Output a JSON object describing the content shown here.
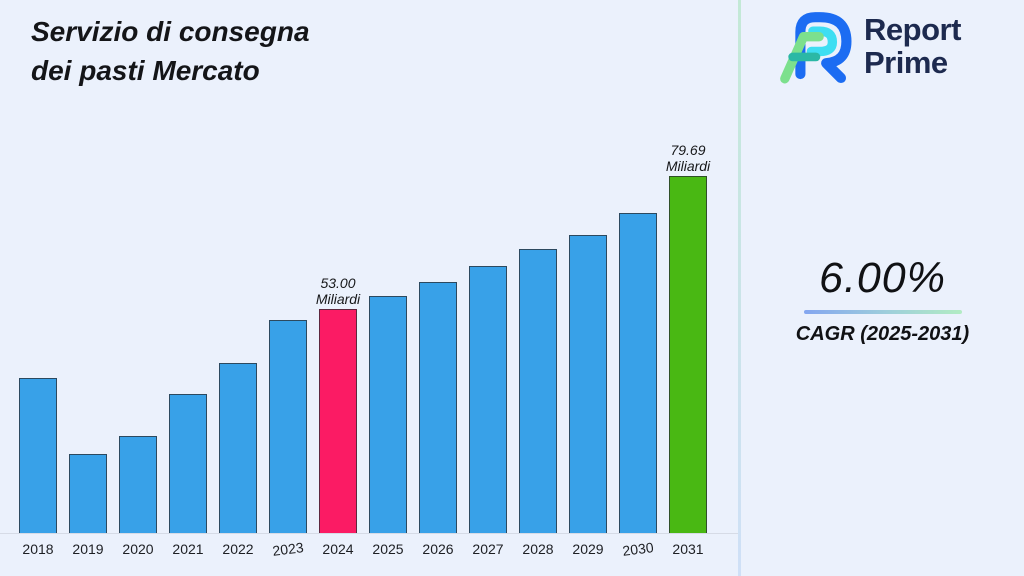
{
  "page": {
    "background": "#ebf1fc"
  },
  "header": {
    "title_line1": "Servizio di consegna",
    "title_line2": "dei pasti Mercato"
  },
  "brand": {
    "name_line1": "Report",
    "name_line2": "Prime",
    "text_color": "#1d2a4f",
    "logo_colors": {
      "blue": "#1c6cf2",
      "cyan": "#3edef2",
      "green": "#7ce08d",
      "teal": "#2bb8a5"
    }
  },
  "stats": {
    "cagr_value": "6.00%",
    "cagr_label": "CAGR (2025-2031)",
    "underline_gradient": [
      "#84a6f0",
      "#b2ecc3"
    ]
  },
  "chart_data": {
    "type": "bar",
    "title": "Servizio di consegna dei pasti Mercato",
    "unit": "Miliardi",
    "xlabel": "",
    "ylabel": "",
    "grid": false,
    "legend": false,
    "y_axis_visible": false,
    "ylim": [
      0,
      85
    ],
    "categories": [
      "2018",
      "2019",
      "2020",
      "2021",
      "2022",
      "2023",
      "2024",
      "2025",
      "2026",
      "2027",
      "2028",
      "2029",
      "2030",
      "2031"
    ],
    "values": [
      39.2,
      24.0,
      27.6,
      36.0,
      42.1,
      50.7,
      53.0,
      55.6,
      58.5,
      61.6,
      65.0,
      67.9,
      72.3,
      79.69
    ],
    "annotations": [
      {
        "category": "2024",
        "value_label": "53.00",
        "unit_label": "Miliardi"
      },
      {
        "category": "2031",
        "value_label": "79.69",
        "unit_label": "Miliardi"
      }
    ],
    "colors": {
      "default_bar": "#38a1e8",
      "highlight_2024": "#fb1b64",
      "highlight_2031": "#49b813",
      "bar_border": "#32363c",
      "axis_line": "#d6dbe6"
    }
  }
}
